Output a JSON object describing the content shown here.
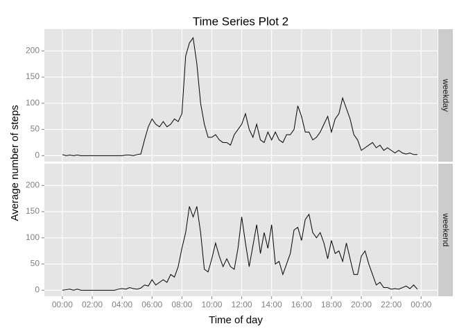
{
  "chart_data": {
    "type": "line",
    "title": "Time Series Plot 2",
    "xlabel": "Time of day",
    "ylabel": "Average number of steps",
    "x": [
      0,
      0.25,
      0.5,
      0.75,
      1,
      1.25,
      1.5,
      1.75,
      2,
      2.25,
      2.5,
      2.75,
      3,
      3.25,
      3.5,
      3.75,
      4,
      4.25,
      4.5,
      4.75,
      5,
      5.25,
      5.5,
      5.75,
      6,
      6.25,
      6.5,
      6.75,
      7,
      7.25,
      7.5,
      7.75,
      8,
      8.25,
      8.5,
      8.75,
      9,
      9.25,
      9.5,
      9.75,
      10,
      10.25,
      10.5,
      10.75,
      11,
      11.25,
      11.5,
      11.75,
      12,
      12.25,
      12.5,
      12.75,
      13,
      13.25,
      13.5,
      13.75,
      14,
      14.25,
      14.5,
      14.75,
      15,
      15.25,
      15.5,
      15.75,
      16,
      16.25,
      16.5,
      16.75,
      17,
      17.25,
      17.5,
      17.75,
      18,
      18.25,
      18.5,
      18.75,
      19,
      19.25,
      19.5,
      19.75,
      20,
      20.25,
      20.5,
      20.75,
      21,
      21.25,
      21.5,
      21.75,
      22,
      22.25,
      22.5,
      22.75,
      23,
      23.25,
      23.5,
      23.75
    ],
    "series": [
      {
        "name": "weekday",
        "color": "#000000",
        "values": [
          2,
          0,
          1,
          0,
          1,
          0,
          0,
          0,
          0,
          0,
          0,
          0,
          0,
          0,
          0,
          0,
          0,
          1,
          1,
          0,
          2,
          3,
          30,
          55,
          70,
          60,
          55,
          65,
          55,
          60,
          70,
          65,
          80,
          190,
          215,
          225,
          175,
          100,
          60,
          35,
          35,
          40,
          30,
          25,
          25,
          20,
          40,
          50,
          60,
          80,
          50,
          35,
          60,
          30,
          25,
          45,
          30,
          45,
          30,
          25,
          40,
          40,
          50,
          95,
          75,
          45,
          45,
          30,
          35,
          45,
          60,
          75,
          45,
          70,
          80,
          110,
          90,
          70,
          40,
          30,
          10,
          15,
          20,
          25,
          15,
          20,
          10,
          15,
          10,
          5,
          10,
          5,
          3,
          5,
          2,
          2
        ]
      },
      {
        "name": "weekend",
        "color": "#000000",
        "values": [
          0,
          1,
          2,
          0,
          2,
          0,
          0,
          0,
          0,
          0,
          0,
          0,
          0,
          0,
          0,
          2,
          3,
          2,
          5,
          3,
          2,
          4,
          10,
          8,
          20,
          10,
          15,
          20,
          15,
          30,
          25,
          45,
          80,
          110,
          160,
          140,
          160,
          110,
          40,
          35,
          60,
          90,
          65,
          45,
          60,
          45,
          40,
          80,
          140,
          90,
          45,
          85,
          125,
          70,
          110,
          80,
          125,
          50,
          55,
          30,
          50,
          70,
          115,
          120,
          95,
          135,
          145,
          110,
          100,
          110,
          90,
          60,
          95,
          70,
          75,
          55,
          90,
          60,
          30,
          30,
          65,
          75,
          50,
          30,
          10,
          15,
          5,
          5,
          2,
          3,
          2,
          5,
          8,
          3,
          10,
          2
        ]
      }
    ],
    "xlim": [
      -1.2,
      25.1
    ],
    "ylim": [
      -11.5,
      241.5
    ],
    "xticks": [
      {
        "value": 0,
        "label": "00:00"
      },
      {
        "value": 2,
        "label": "02:00"
      },
      {
        "value": 4,
        "label": "04:00"
      },
      {
        "value": 6,
        "label": "06:00"
      },
      {
        "value": 8,
        "label": "08:00"
      },
      {
        "value": 10,
        "label": "10:00"
      },
      {
        "value": 12,
        "label": "12:00"
      },
      {
        "value": 14,
        "label": "14:00"
      },
      {
        "value": 16,
        "label": "16:00"
      },
      {
        "value": 18,
        "label": "18:00"
      },
      {
        "value": 20,
        "label": "20:00"
      },
      {
        "value": 22,
        "label": "22:00"
      },
      {
        "value": 24,
        "label": "00:00"
      }
    ],
    "yticks": [
      0,
      50,
      100,
      150,
      200
    ],
    "grid": true
  }
}
